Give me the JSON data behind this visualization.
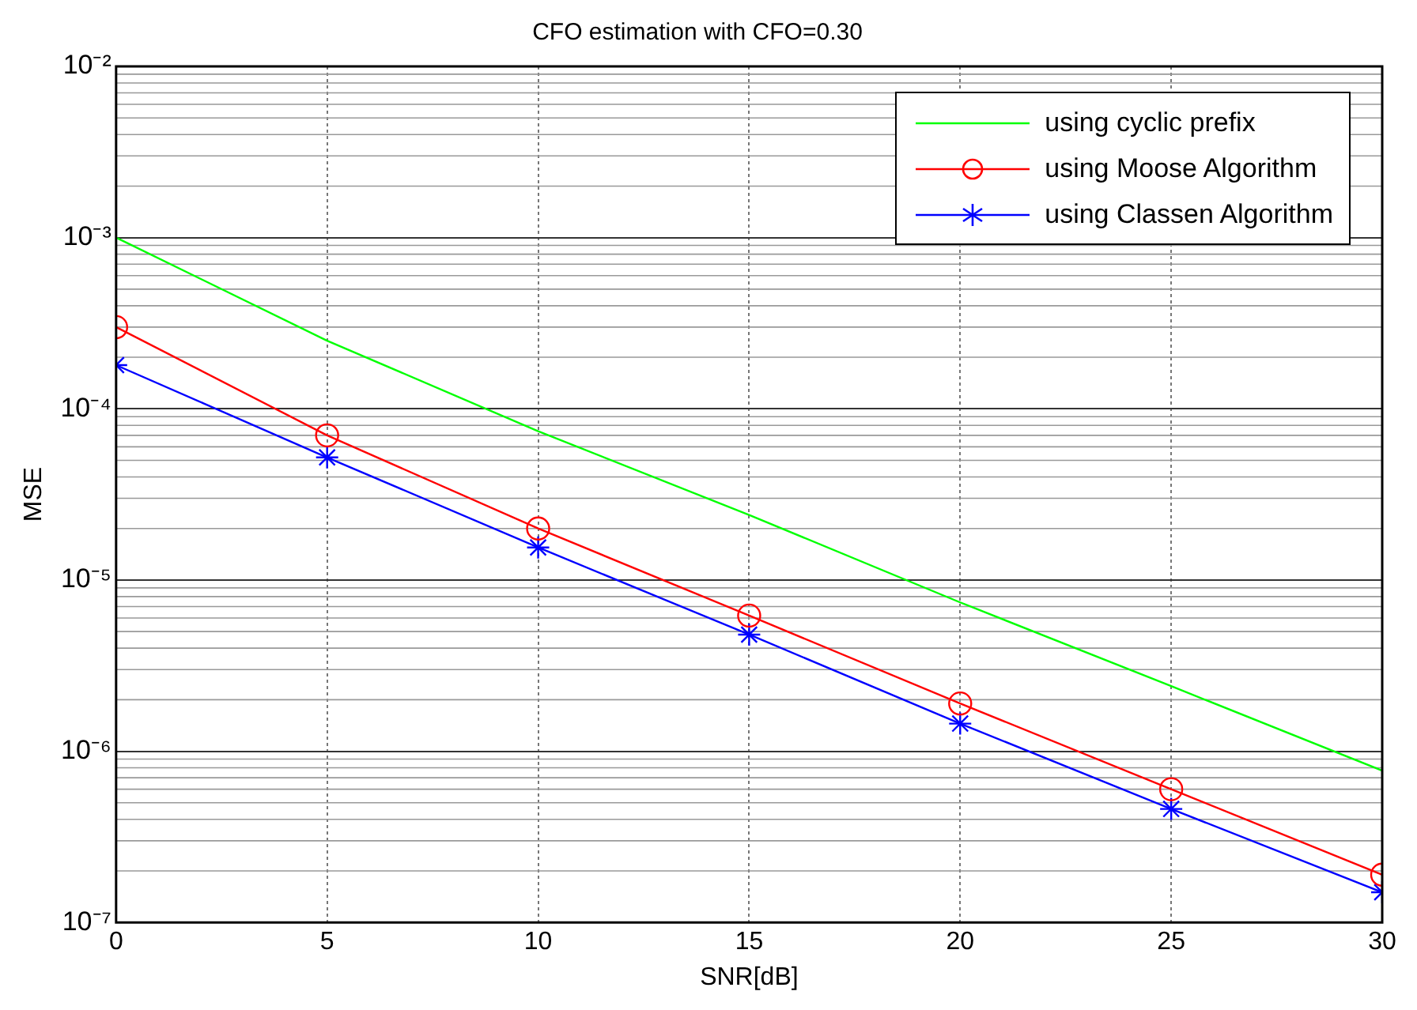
{
  "chart_data": {
    "type": "line",
    "title": "CFO estimation with CFO=0.30",
    "xlabel": "SNR[dB]",
    "ylabel": "MSE",
    "x": [
      0,
      5,
      10,
      15,
      20,
      25,
      30
    ],
    "series": [
      {
        "name": "using cyclic prefix",
        "color": "#00ff00",
        "marker": "none",
        "values": [
          0.001,
          0.00025,
          7.4e-05,
          2.4e-05,
          7.4e-06,
          2.4e-06,
          7.7e-07
        ]
      },
      {
        "name": "using Moose Algorithm",
        "color": "#ff0000",
        "marker": "circle",
        "values": [
          0.0003,
          7e-05,
          2e-05,
          6.2e-06,
          1.9e-06,
          6e-07,
          1.9e-07
        ]
      },
      {
        "name": "using Classen Algorithm",
        "color": "#0000ff",
        "marker": "cross",
        "values": [
          0.00018,
          5.2e-05,
          1.55e-05,
          4.8e-06,
          1.45e-06,
          4.6e-07,
          1.5e-07
        ]
      }
    ],
    "log": "y",
    "xlim": [
      0,
      30
    ],
    "xticks": [
      0,
      5,
      10,
      15,
      20,
      25,
      30
    ],
    "ylim": [
      1e-07,
      0.01
    ],
    "yticks": [
      {
        "value": 1e-07,
        "label": "10⁻⁷"
      },
      {
        "value": 1e-06,
        "label": "10⁻⁶"
      },
      {
        "value": 1e-05,
        "label": "10⁻⁵"
      },
      {
        "value": 0.0001,
        "label": "10⁻⁴"
      },
      {
        "value": 0.001,
        "label": "10⁻³"
      },
      {
        "value": 0.01,
        "label": "10⁻²"
      }
    ],
    "grid": true,
    "legend": "top right",
    "line_style": "solid"
  }
}
